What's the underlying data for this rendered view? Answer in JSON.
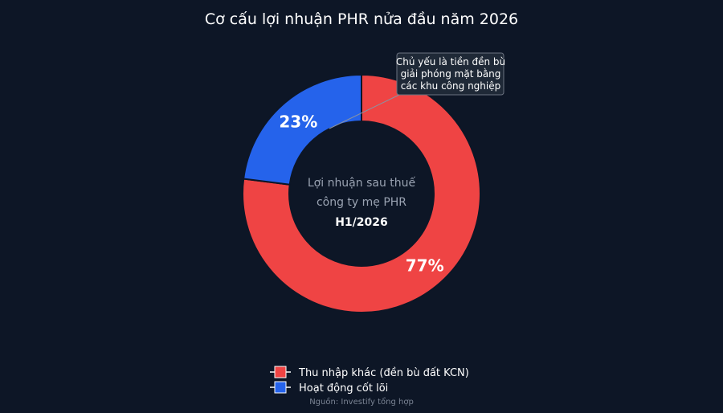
{
  "chart_data": {
    "type": "pie",
    "title": "Cơ cấu lợi nhuận PHR nửa đầu năm 2026",
    "hole": true,
    "center_label": {
      "lines": [
        "Lợi nhuận sau thuế",
        "công ty mẹ PHR"
      ],
      "bold": "H1/2026"
    },
    "slices": [
      {
        "label": "Thu nhập khác (đền bù đất KCN)",
        "value": 77,
        "display": "77%",
        "color": "#ef4444"
      },
      {
        "label": "Hoạt động cốt lõi",
        "value": 23,
        "display": "23%",
        "color": "#2563eb"
      }
    ],
    "annotation": {
      "target": "Thu nhập khác (đền bù đất KCN)",
      "lines": [
        "Chủ yếu là tiền đền bù",
        "giải phóng mặt bằng",
        "các khu công nghiệp"
      ]
    },
    "legend_position": "bottom-center",
    "source": "Nguồn: Investify tổng hợp"
  }
}
